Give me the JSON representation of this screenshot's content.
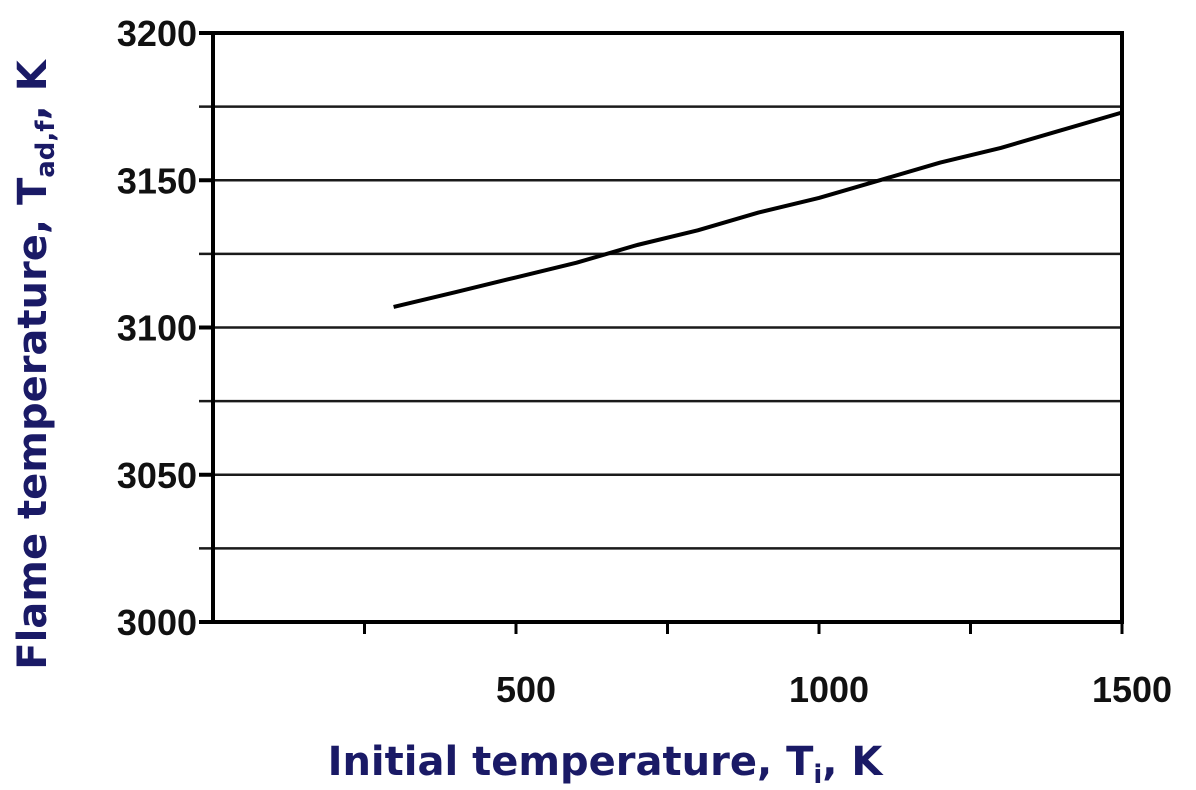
{
  "chart_data": {
    "type": "line",
    "xlabel": "Initial temperature, T",
    "xlabel_sub": "i",
    "xlabel_suffix": ", K",
    "ylabel": "Flame temperature, T",
    "ylabel_sub": "ad,f",
    "ylabel_suffix": ", K",
    "xlim": [
      0,
      1500
    ],
    "ylim": [
      3000,
      3200
    ],
    "x_ticks": [
      500,
      1000,
      1500
    ],
    "x_minor_ticks": [
      250,
      750,
      1250
    ],
    "y_ticks": [
      3000,
      3050,
      3100,
      3150,
      3200
    ],
    "y_gridlines": [
      3025,
      3050,
      3075,
      3100,
      3125,
      3150,
      3175,
      3200
    ],
    "grid": "horizontal",
    "series": [
      {
        "x": [
          298,
          400,
          500,
          600,
          700,
          800,
          900,
          1000,
          1100,
          1200,
          1300,
          1400,
          1500
        ],
        "y": [
          3107,
          3112,
          3117,
          3122,
          3128,
          3133,
          3139,
          3144,
          3150,
          3156,
          3161,
          3167,
          3173
        ]
      }
    ]
  },
  "colors": {
    "axis_title": "#1a1a66",
    "line": "#000000",
    "grid": "#1a1a1a"
  }
}
